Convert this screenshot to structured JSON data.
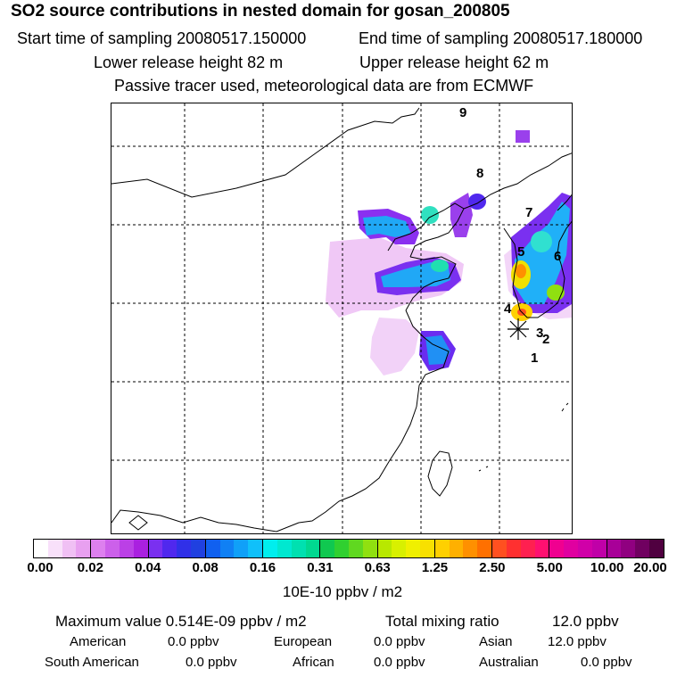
{
  "title": "SO2 source contributions in nested domain for gosan_200805",
  "start_time": "Start time of sampling 20080517.150000",
  "end_time": "End time of sampling 20080517.180000",
  "lower_height": "Lower release height   82 m",
  "upper_height": "Upper release height   62 m",
  "tracer_note": "Passive tracer used, meteorological data are from ECMWF",
  "map": {
    "station_labels": [
      "1",
      "2",
      "3",
      "4",
      "5",
      "6",
      "7",
      "8",
      "9"
    ],
    "station_marker": "asterisk-icon"
  },
  "colorbar": {
    "ticks": [
      "0.00",
      "0.02",
      "0.04",
      "0.08",
      "0.16",
      "0.31",
      "0.63",
      "1.25",
      "2.50",
      "5.00",
      "10.00",
      "20.00"
    ],
    "colors": [
      [
        "#ffffff",
        "#f8e0fa",
        "#f0c0f4",
        "#e8a0f0"
      ],
      [
        "#dd80ee",
        "#cc60ea",
        "#bb40e6",
        "#aa20e0"
      ],
      [
        "#7a30f0",
        "#5028ee",
        "#3030e8",
        "#2040e0"
      ],
      [
        "#1060f0",
        "#1080f4",
        "#10a0f8",
        "#10c0fa"
      ],
      [
        "#00eeee",
        "#00e8d0",
        "#00e0b0",
        "#00d890"
      ],
      [
        "#10c850",
        "#30d030",
        "#60d820",
        "#90e010"
      ],
      [
        "#b8e800",
        "#d8f000",
        "#f0f000",
        "#f8e000"
      ],
      [
        "#ffd000",
        "#ffb000",
        "#ff9000",
        "#ff7000"
      ],
      [
        "#ff5020",
        "#ff3030",
        "#ff2050",
        "#ff1070"
      ],
      [
        "#f00090",
        "#e000a0",
        "#d000a8",
        "#c000a8"
      ],
      [
        "#a80098",
        "#900080",
        "#700060",
        "#500040"
      ]
    ],
    "units": "10E-10 ppbv / m2"
  },
  "stats": {
    "max_value": "Maximum value  0.514E-09 ppbv / m2",
    "total_mixing": "Total mixing ratio",
    "total_mixing_value": "12.0 ppbv",
    "american_label": "American",
    "american_value": "0.0 ppbv",
    "european_label": "European",
    "european_value": "0.0 ppbv",
    "asian_label": "Asian",
    "asian_value": "12.0 ppbv",
    "south_american_label": "South American",
    "south_american_value": "0.0 ppbv",
    "african_label": "African",
    "african_value": "0.0 ppbv",
    "australian_label": "Australian",
    "australian_value": "0.0 ppbv"
  }
}
